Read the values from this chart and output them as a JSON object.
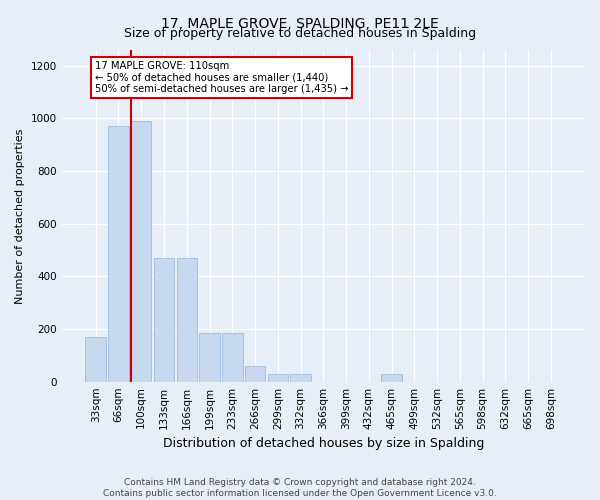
{
  "title": "17, MAPLE GROVE, SPALDING, PE11 2LE",
  "subtitle": "Size of property relative to detached houses in Spalding",
  "xlabel": "Distribution of detached houses by size in Spalding",
  "ylabel": "Number of detached properties",
  "categories": [
    "33sqm",
    "66sqm",
    "100sqm",
    "133sqm",
    "166sqm",
    "199sqm",
    "233sqm",
    "266sqm",
    "299sqm",
    "332sqm",
    "366sqm",
    "399sqm",
    "432sqm",
    "465sqm",
    "499sqm",
    "532sqm",
    "565sqm",
    "598sqm",
    "632sqm",
    "665sqm",
    "698sqm"
  ],
  "values": [
    170,
    970,
    990,
    470,
    470,
    185,
    185,
    60,
    30,
    30,
    0,
    0,
    0,
    30,
    0,
    0,
    0,
    0,
    0,
    0,
    0
  ],
  "bar_color": "#c6d9f1",
  "bar_edgecolor": "#95b3d7",
  "redline_color": "#cc0000",
  "redline_bar_index": 2,
  "annotation_text": "17 MAPLE GROVE: 110sqm\n← 50% of detached houses are smaller (1,440)\n50% of semi-detached houses are larger (1,435) →",
  "annotation_box_edgecolor": "#cc0000",
  "annotation_box_facecolor": "#ffffff",
  "ylim": [
    0,
    1260
  ],
  "yticks": [
    0,
    200,
    400,
    600,
    800,
    1000,
    1200
  ],
  "background_color": "#e8eef8",
  "plot_bg_color": "#e8eef8",
  "footer": "Contains HM Land Registry data © Crown copyright and database right 2024.\nContains public sector information licensed under the Open Government Licence v3.0.",
  "title_fontsize": 10,
  "subtitle_fontsize": 9,
  "xlabel_fontsize": 9,
  "ylabel_fontsize": 8,
  "tick_fontsize": 7.5,
  "footer_fontsize": 6.5,
  "grid_color": "#ffffff"
}
